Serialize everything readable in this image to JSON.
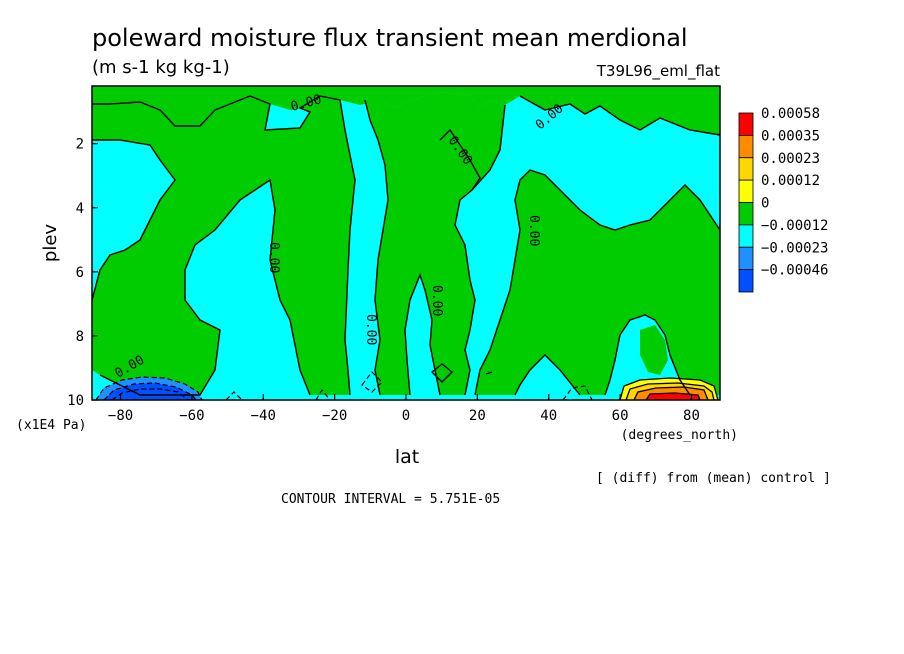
{
  "chart_data": {
    "type": "heatmap",
    "title": "poleward moisture flux transient mean merdional",
    "subtitle": "(m s-1 kg kg-1)",
    "run_label": "T39L96_eml_flat",
    "xlabel": "lat",
    "xunit": "(degrees_north)",
    "ylabel": "plev",
    "yunit": "(x1E4 Pa)",
    "x_ticks": [
      -80,
      -60,
      -40,
      -20,
      0,
      20,
      40,
      60,
      80
    ],
    "y_ticks": [
      2,
      4,
      6,
      8,
      10
    ],
    "xlim": [
      -88,
      88
    ],
    "ylim": [
      0.2,
      10
    ],
    "y_inverted": true,
    "contour_label": "0.00",
    "contour_interval_text": "CONTOUR INTERVAL = 5.751E-05",
    "diff_note": "[ (diff) from (mean) control ]",
    "colorbar": [
      {
        "label": "0.00058",
        "color": "#ff0000"
      },
      {
        "label": "0.00035",
        "color": "#ff8c00"
      },
      {
        "label": "0.00023",
        "color": "#ffd700"
      },
      {
        "label": "0.00012",
        "color": "#ffff00"
      },
      {
        "label": "0",
        "color": "#00cc00"
      },
      {
        "label": "−0.00012",
        "color": "#00ffff"
      },
      {
        "label": "−0.00023",
        "color": "#1e90ff"
      },
      {
        "label": "−0.00046",
        "color": "#0050ff"
      }
    ]
  }
}
